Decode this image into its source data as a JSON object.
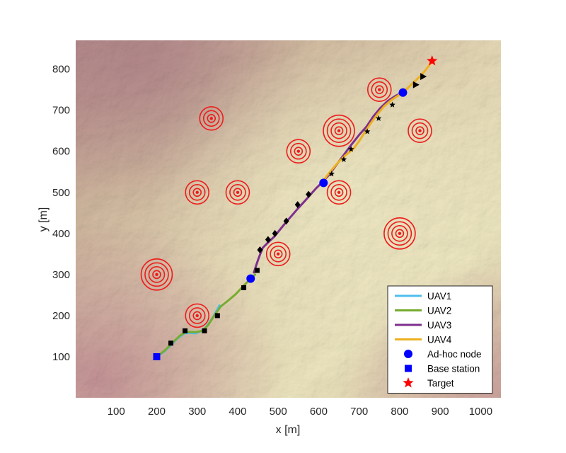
{
  "chart_data": {
    "type": "line",
    "xlabel": "x [m]",
    "ylabel": "y [m]",
    "xlim": [
      0,
      1050
    ],
    "ylim": [
      0,
      870
    ],
    "xticks": [
      100,
      200,
      300,
      400,
      500,
      600,
      700,
      800,
      900,
      1000
    ],
    "yticks": [
      100,
      200,
      300,
      400,
      500,
      600,
      700,
      800
    ],
    "background": "terrain elevation map (hillshade relief)",
    "grid": false,
    "legend_position": "bottom-right",
    "series": [
      {
        "name": "UAV1",
        "color": "#4dbeee",
        "points": [
          [
            200,
            100
          ],
          [
            218,
            112
          ],
          [
            235,
            128
          ],
          [
            252,
            145
          ],
          [
            268,
            157
          ],
          [
            280,
            158
          ],
          [
            295,
            157
          ],
          [
            305,
            160
          ],
          [
            318,
            168
          ],
          [
            328,
            180
          ],
          [
            338,
            195
          ],
          [
            348,
            212
          ],
          [
            355,
            225
          ]
        ]
      },
      {
        "name": "UAV2",
        "color": "#77ac30",
        "points": [
          [
            200,
            100
          ],
          [
            220,
            115
          ],
          [
            240,
            135
          ],
          [
            258,
            152
          ],
          [
            272,
            160
          ],
          [
            288,
            160
          ],
          [
            300,
            160
          ],
          [
            315,
            164
          ],
          [
            328,
            178
          ],
          [
            342,
            200
          ],
          [
            358,
            222
          ],
          [
            378,
            238
          ],
          [
            395,
            252
          ],
          [
            410,
            268
          ],
          [
            422,
            280
          ],
          [
            432,
            290
          ],
          [
            443,
            300
          ]
        ]
      },
      {
        "name": "UAV3",
        "color": "#7e2f8e",
        "points": [
          [
            440,
            305
          ],
          [
            445,
            320
          ],
          [
            450,
            335
          ],
          [
            455,
            348
          ],
          [
            462,
            365
          ],
          [
            475,
            378
          ],
          [
            490,
            392
          ],
          [
            505,
            410
          ],
          [
            520,
            428
          ],
          [
            535,
            445
          ],
          [
            550,
            462
          ],
          [
            565,
            478
          ],
          [
            580,
            495
          ],
          [
            592,
            508
          ],
          [
            604,
            520
          ],
          [
            612,
            528
          ],
          [
            625,
            542
          ],
          [
            640,
            562
          ],
          [
            652,
            578
          ],
          [
            665,
            595
          ],
          [
            680,
            615
          ],
          [
            700,
            640
          ],
          [
            718,
            660
          ],
          [
            735,
            685
          ],
          [
            752,
            705
          ],
          [
            770,
            722
          ],
          [
            790,
            735
          ],
          [
            805,
            742
          ]
        ]
      },
      {
        "name": "UAV4",
        "color": "#edb120",
        "points": [
          [
            612,
            528
          ],
          [
            620,
            540
          ],
          [
            635,
            558
          ],
          [
            650,
            575
          ],
          [
            668,
            592
          ],
          [
            685,
            605
          ],
          [
            700,
            625
          ],
          [
            715,
            648
          ],
          [
            730,
            670
          ],
          [
            745,
            690
          ],
          [
            762,
            710
          ],
          [
            780,
            725
          ],
          [
            800,
            738
          ],
          [
            818,
            752
          ],
          [
            835,
            768
          ],
          [
            850,
            782
          ],
          [
            862,
            795
          ],
          [
            872,
            808
          ],
          [
            880,
            820
          ]
        ]
      }
    ],
    "black_markers": [
      [
        235,
        133
      ],
      [
        270,
        163
      ],
      [
        318,
        163
      ],
      [
        350,
        200
      ],
      [
        415,
        268
      ],
      [
        448,
        310
      ],
      [
        455,
        360
      ],
      [
        475,
        385
      ],
      [
        492,
        400
      ],
      [
        520,
        430
      ],
      [
        548,
        470
      ],
      [
        575,
        495
      ],
      [
        632,
        545
      ],
      [
        662,
        580
      ],
      [
        680,
        605
      ],
      [
        720,
        648
      ],
      [
        748,
        680
      ],
      [
        782,
        713
      ],
      [
        840,
        762
      ],
      [
        858,
        782
      ]
    ],
    "adhoc_nodes": [
      [
        432,
        290
      ],
      [
        612,
        523
      ],
      [
        808,
        743
      ]
    ],
    "base_station": [
      200,
      100
    ],
    "target": [
      880,
      820
    ],
    "threat_zones": [
      {
        "x": 335,
        "y": 680,
        "rings": 3
      },
      {
        "x": 550,
        "y": 600,
        "rings": 3
      },
      {
        "x": 650,
        "y": 650,
        "rings": 4
      },
      {
        "x": 750,
        "y": 750,
        "rings": 3
      },
      {
        "x": 850,
        "y": 650,
        "rings": 3
      },
      {
        "x": 300,
        "y": 500,
        "rings": 3
      },
      {
        "x": 400,
        "y": 500,
        "rings": 3
      },
      {
        "x": 650,
        "y": 500,
        "rings": 3
      },
      {
        "x": 800,
        "y": 400,
        "rings": 4
      },
      {
        "x": 500,
        "y": 350,
        "rings": 3
      },
      {
        "x": 200,
        "y": 300,
        "rings": 4
      },
      {
        "x": 300,
        "y": 200,
        "rings": 3
      }
    ],
    "legend": [
      {
        "label": "UAV1",
        "kind": "line",
        "color": "#4dbeee"
      },
      {
        "label": "UAV2",
        "kind": "line",
        "color": "#77ac30"
      },
      {
        "label": "UAV3",
        "kind": "line",
        "color": "#7e2f8e"
      },
      {
        "label": "UAV4",
        "kind": "line",
        "color": "#edb120"
      },
      {
        "label": "Ad-hoc node",
        "kind": "circle",
        "color": "#0000ff"
      },
      {
        "label": "Base station",
        "kind": "square",
        "color": "#0000ff"
      },
      {
        "label": "Target",
        "kind": "star",
        "color": "#ff0000"
      }
    ]
  }
}
